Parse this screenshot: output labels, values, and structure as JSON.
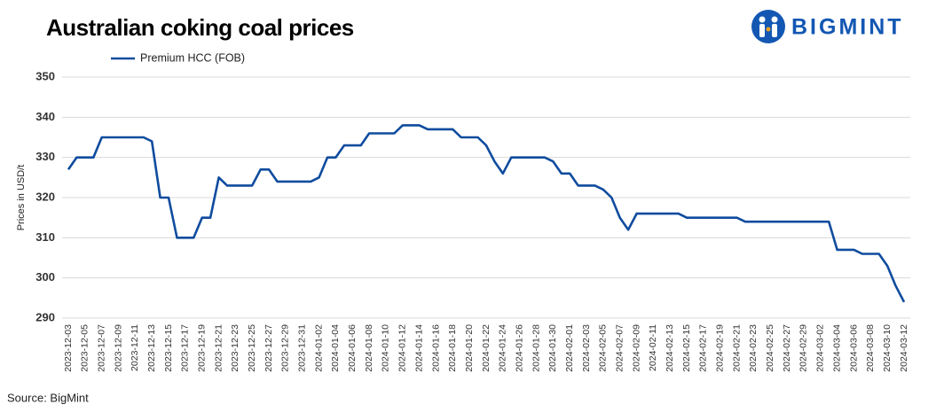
{
  "chart_data": {
    "type": "line",
    "title": "Australian coking coal prices",
    "logo": "BIGMINT",
    "source": "Source: BigMint",
    "y_label": "Prices in USD/t",
    "categories": [
      "2023-12-03",
      null,
      "2023-12-05",
      null,
      "2023-12-07",
      null,
      "2023-12-09",
      null,
      "2023-12-11",
      null,
      "2023-12-13",
      null,
      "2023-12-15",
      null,
      "2023-12-17",
      null,
      "2023-12-19",
      null,
      "2023-12-21",
      null,
      "2023-12-23",
      null,
      "2023-12-25",
      null,
      "2023-12-27",
      null,
      "2023-12-29",
      null,
      "2023-12-31",
      null,
      "2024-01-02",
      null,
      "2024-01-04",
      null,
      "2024-01-06",
      null,
      "2024-01-08",
      null,
      "2024-01-10",
      null,
      "2024-01-12",
      null,
      "2024-01-14",
      null,
      "2024-01-16",
      null,
      "2024-01-18",
      null,
      "2024-01-20",
      null,
      "2024-01-22",
      null,
      "2024-01-24",
      null,
      "2024-01-26",
      null,
      "2024-01-28",
      null,
      "2024-01-30",
      null,
      "2024-02-01",
      null,
      "2024-02-03",
      null,
      "2024-02-05",
      null,
      "2024-02-07",
      null,
      "2024-02-09",
      null,
      "2024-02-11",
      null,
      "2024-02-13",
      null,
      "2024-02-15",
      null,
      "2024-02-17",
      null,
      "2024-02-19",
      null,
      "2024-02-21",
      null,
      "2024-02-23",
      null,
      "2024-02-25",
      null,
      "2024-02-27",
      null,
      "2024-02-29",
      null,
      "2024-03-02",
      null,
      "2024-03-04",
      null,
      "2024-03-06",
      null,
      "2024-03-08",
      null,
      "2024-03-10",
      null,
      "2024-03-12"
    ],
    "series": [
      {
        "name": "Premium HCC (FOB)",
        "color": "#0f4c9e",
        "values": [
          327,
          330,
          330,
          330,
          335,
          335,
          335,
          335,
          335,
          335,
          334,
          320,
          320,
          310,
          310,
          310,
          315,
          315,
          325,
          323,
          323,
          323,
          323,
          327,
          327,
          324,
          324,
          324,
          324,
          324,
          325,
          330,
          330,
          333,
          333,
          333,
          336,
          336,
          336,
          336,
          338,
          338,
          338,
          337,
          337,
          337,
          337,
          335,
          335,
          335,
          333,
          329,
          326,
          330,
          330,
          330,
          330,
          330,
          329,
          326,
          326,
          323,
          323,
          323,
          322,
          320,
          315,
          312,
          316,
          316,
          316,
          316,
          316,
          316,
          315,
          315,
          315,
          315,
          315,
          315,
          315,
          314,
          314,
          314,
          314,
          314,
          314,
          314,
          314,
          314,
          314,
          314,
          307,
          307,
          307,
          306,
          306,
          306,
          303,
          298,
          294
        ]
      }
    ],
    "ylim": [
      290,
      350
    ],
    "yticks": [
      290,
      300,
      310,
      320,
      330,
      340,
      350
    ],
    "grid": true
  }
}
